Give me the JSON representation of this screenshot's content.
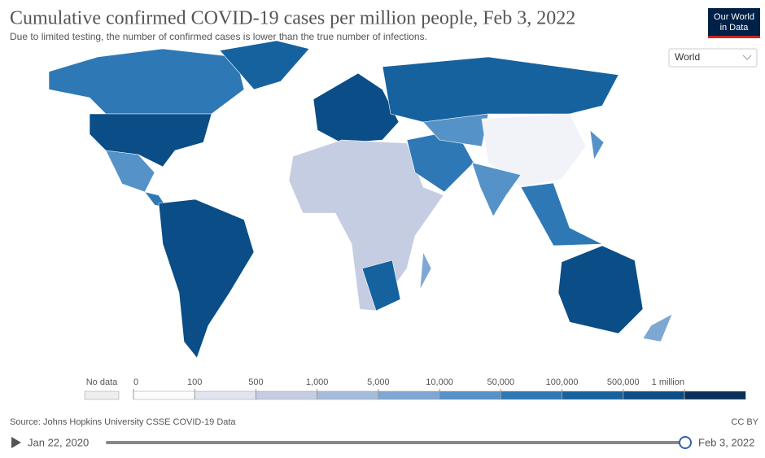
{
  "header": {
    "title": "Cumulative confirmed COVID-19 cases per million people, Feb 3, 2022",
    "subtitle": "Due to limited testing, the number of confirmed cases is lower than the true number of infections.",
    "logo": [
      "Our World",
      "in Data"
    ]
  },
  "region_select": "World",
  "legend": {
    "no_data": "No data",
    "no_data_color": "#eeeeee",
    "bins": [
      0,
      100,
      500,
      {
        "value": 1000,
        "label": "1,000"
      },
      {
        "value": 5000,
        "label": "5,000"
      },
      {
        "value": 10000,
        "label": "10,000"
      },
      {
        "value": 50000,
        "label": "50,000"
      },
      {
        "value": 100000,
        "label": "100,000"
      },
      {
        "value": 500000,
        "label": "500,000"
      },
      {
        "value": 1000000,
        "label": "1 million"
      }
    ],
    "colors": [
      "#fbfcfe",
      "#e1e5f0",
      "#c5cde3",
      "#a5bddc",
      "#7ea7d4",
      "#5592c7",
      "#2e78b6",
      "#16629f",
      "#0b4d86",
      "#083058"
    ]
  },
  "footer": {
    "source": "Source: Johns Hopkins University CSSE COVID-19 Data",
    "license": "CC BY"
  },
  "timeline": {
    "start": "Jan 22, 2020",
    "end": "Feb 3, 2022"
  }
}
